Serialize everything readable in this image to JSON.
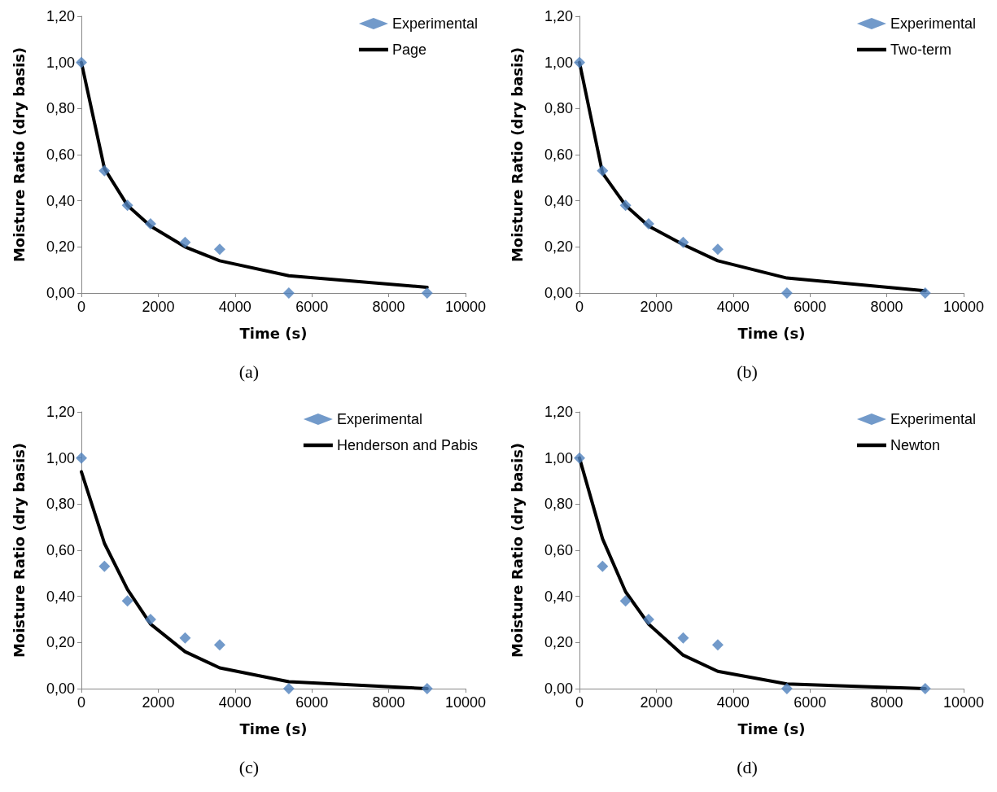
{
  "chart_data": [
    {
      "type": "scatter",
      "xlabel": "Time (s)",
      "ylabel": "Moisture Ratio (dry basis)",
      "annotations": [
        "(a)"
      ],
      "xlim": [
        0,
        10000
      ],
      "xticks": [
        0,
        2000,
        4000,
        6000,
        8000,
        10000
      ],
      "ylim": [
        0,
        1.2
      ],
      "yticks": [
        {
          "value": 0,
          "label": "0,00"
        },
        {
          "value": 0.2,
          "label": "0,20"
        },
        {
          "value": 0.4,
          "label": "0,40"
        },
        {
          "value": 0.6,
          "label": "0,60"
        },
        {
          "value": 0.8,
          "label": "0,80"
        },
        {
          "value": 1,
          "label": "1,00"
        },
        {
          "value": 1.2,
          "label": "1,20"
        }
      ],
      "grid": false,
      "legend": "top right",
      "marker": "diamond",
      "x": [
        0,
        600,
        1200,
        1800,
        2700,
        3600,
        5400,
        9000
      ],
      "series": [
        {
          "name": "Experimental",
          "color": "#4f81bd",
          "values": [
            1.0,
            0.53,
            0.38,
            0.3,
            0.22,
            0.19,
            0.0,
            0.0
          ]
        },
        {
          "name": "Page",
          "type": "line",
          "marker": "none",
          "color": "#000000",
          "values": [
            1.0,
            0.54,
            0.38,
            0.29,
            0.2,
            0.14,
            0.075,
            0.025
          ]
        }
      ]
    },
    {
      "type": "scatter",
      "xlabel": "Time (s)",
      "ylabel": "Moisture Ratio (dry basis)",
      "annotations": [
        "(b)"
      ],
      "xlim": [
        0,
        10000
      ],
      "xticks": [
        0,
        2000,
        4000,
        6000,
        8000,
        10000
      ],
      "ylim": [
        0,
        1.2
      ],
      "yticks": [
        {
          "value": 0,
          "label": "0,00"
        },
        {
          "value": 0.2,
          "label": "0,20"
        },
        {
          "value": 0.4,
          "label": "0,40"
        },
        {
          "value": 0.6,
          "label": "0,60"
        },
        {
          "value": 0.8,
          "label": "0,80"
        },
        {
          "value": 1,
          "label": "1,00"
        },
        {
          "value": 1.2,
          "label": "1,20"
        }
      ],
      "grid": false,
      "legend": "top right",
      "marker": "diamond",
      "x": [
        0,
        600,
        1200,
        1800,
        2700,
        3600,
        5400,
        9000
      ],
      "series": [
        {
          "name": "Experimental",
          "color": "#4f81bd",
          "values": [
            1.0,
            0.53,
            0.38,
            0.3,
            0.22,
            0.19,
            0.0,
            0.0
          ]
        },
        {
          "name": "Two-term",
          "type": "line",
          "marker": "none",
          "color": "#000000",
          "values": [
            1.0,
            0.52,
            0.38,
            0.29,
            0.21,
            0.14,
            0.065,
            0.01
          ]
        }
      ]
    },
    {
      "type": "scatter",
      "xlabel": "Time (s)",
      "ylabel": "Moisture Ratio (dry basis)",
      "annotations": [
        "(c)"
      ],
      "xlim": [
        0,
        10000
      ],
      "xticks": [
        0,
        2000,
        4000,
        6000,
        8000,
        10000
      ],
      "ylim": [
        0,
        1.2
      ],
      "yticks": [
        {
          "value": 0,
          "label": "0,00"
        },
        {
          "value": 0.2,
          "label": "0,20"
        },
        {
          "value": 0.4,
          "label": "0,40"
        },
        {
          "value": 0.6,
          "label": "0,60"
        },
        {
          "value": 0.8,
          "label": "0,80"
        },
        {
          "value": 1,
          "label": "1,00"
        },
        {
          "value": 1.2,
          "label": "1,20"
        }
      ],
      "grid": false,
      "legend": "top right",
      "marker": "diamond",
      "x": [
        0,
        600,
        1200,
        1800,
        2700,
        3600,
        5400,
        9000
      ],
      "series": [
        {
          "name": "Experimental",
          "color": "#4f81bd",
          "values": [
            1.0,
            0.53,
            0.38,
            0.3,
            0.22,
            0.19,
            0.0,
            0.0
          ]
        },
        {
          "name": "Henderson and Pabis",
          "type": "line",
          "marker": "none",
          "color": "#000000",
          "values": [
            0.94,
            0.63,
            0.43,
            0.28,
            0.16,
            0.09,
            0.03,
            0.0
          ]
        }
      ]
    },
    {
      "type": "scatter",
      "xlabel": "Time (s)",
      "ylabel": "Moisture Ratio (dry basis)",
      "annotations": [
        "(d)"
      ],
      "xlim": [
        0,
        10000
      ],
      "xticks": [
        0,
        2000,
        4000,
        6000,
        8000,
        10000
      ],
      "ylim": [
        0,
        1.2
      ],
      "yticks": [
        {
          "value": 0,
          "label": "0,00"
        },
        {
          "value": 0.2,
          "label": "0,20"
        },
        {
          "value": 0.4,
          "label": "0,40"
        },
        {
          "value": 0.6,
          "label": "0,60"
        },
        {
          "value": 0.8,
          "label": "0,80"
        },
        {
          "value": 1,
          "label": "1,00"
        },
        {
          "value": 1.2,
          "label": "1,20"
        }
      ],
      "grid": false,
      "legend": "top right",
      "marker": "diamond",
      "x": [
        0,
        600,
        1200,
        1800,
        2700,
        3600,
        5400,
        9000
      ],
      "series": [
        {
          "name": "Experimental",
          "color": "#4f81bd",
          "values": [
            1.0,
            0.53,
            0.38,
            0.3,
            0.22,
            0.19,
            0.0,
            0.0
          ]
        },
        {
          "name": "Newton",
          "type": "line",
          "marker": "none",
          "color": "#000000",
          "values": [
            1.0,
            0.65,
            0.42,
            0.28,
            0.145,
            0.075,
            0.02,
            0.0
          ]
        }
      ]
    }
  ]
}
